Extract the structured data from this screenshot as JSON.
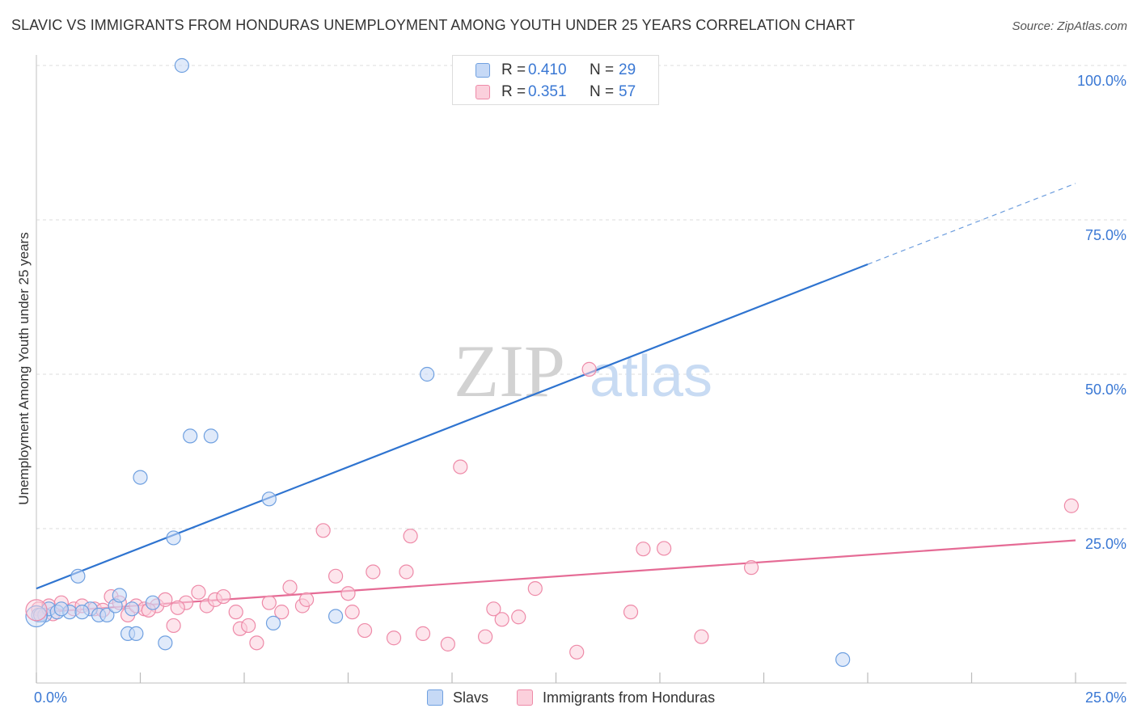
{
  "title": "SLAVIC VS IMMIGRANTS FROM HONDURAS UNEMPLOYMENT AMONG YOUTH UNDER 25 YEARS CORRELATION CHART",
  "source": "Source: ZipAtlas.com",
  "watermark": {
    "zip": "ZIP",
    "atlas": "atlas"
  },
  "legend_top": [
    {
      "r_label": "R =",
      "r_value": "0.410",
      "n_label": "N =",
      "n_value": "29",
      "color": "#6fa0e0",
      "fill": "#c6d9f6"
    },
    {
      "r_label": "R =",
      "r_value": "0.351",
      "n_label": "N =",
      "n_value": "57",
      "color": "#ee8aa8",
      "fill": "#fbd0dc"
    }
  ],
  "legend_bottom": [
    {
      "label": "Slavs",
      "color": "#6fa0e0",
      "fill": "#c6d9f6"
    },
    {
      "label": "Immigrants from Honduras",
      "color": "#ee8aa8",
      "fill": "#fbd0dc"
    }
  ],
  "chart_data": {
    "type": "scatter",
    "title": "SLAVIC VS IMMIGRANTS FROM HONDURAS UNEMPLOYMENT AMONG YOUTH UNDER 25 YEARS CORRELATION CHART",
    "xlabel": "",
    "ylabel": "Unemployment Among Youth under 25 years",
    "xlim": [
      0,
      25
    ],
    "ylim": [
      0,
      102
    ],
    "x_tick_labels": [
      {
        "value": 0,
        "label": "0.0%"
      },
      {
        "value": 25,
        "label": "25.0%"
      }
    ],
    "y_tick_labels": [
      {
        "value": 25,
        "label": "25.0%"
      },
      {
        "value": 50,
        "label": "50.0%"
      },
      {
        "value": 75,
        "label": "75.0%"
      },
      {
        "value": 100,
        "label": "100.0%"
      }
    ],
    "x_minor_ticks": [
      0,
      2.5,
      5,
      7.5,
      10,
      12.5,
      15,
      17.5,
      20,
      22.5,
      25
    ],
    "series": [
      {
        "name": "Slavs",
        "color": "#6fa0e0",
        "fill": "#c6d9f6",
        "trend_color": "#2f74d0",
        "trend": {
          "x0": 0,
          "y0": 15.3,
          "x1": 20,
          "y1": 67.8,
          "dash_to_x": 25,
          "dash_to_y": 80.9
        },
        "points": [
          [
            0.05,
            11
          ],
          [
            0.2,
            11
          ],
          [
            0.3,
            12
          ],
          [
            0.5,
            11.5
          ],
          [
            0.8,
            11.5
          ],
          [
            1.0,
            17.3
          ],
          [
            1.3,
            12
          ],
          [
            1.5,
            11
          ],
          [
            1.7,
            11
          ],
          [
            1.9,
            12.5
          ],
          [
            2.0,
            14.2
          ],
          [
            2.2,
            8
          ],
          [
            2.4,
            8
          ],
          [
            2.5,
            33.3
          ],
          [
            2.8,
            13
          ],
          [
            3.1,
            6.5
          ],
          [
            3.3,
            23.5
          ],
          [
            3.5,
            100
          ],
          [
            3.7,
            40
          ],
          [
            4.2,
            40
          ],
          [
            5.6,
            29.8
          ],
          [
            5.7,
            9.7
          ],
          [
            7.2,
            10.8
          ],
          [
            9.4,
            50
          ],
          [
            19.4,
            3.8
          ],
          [
            0.1,
            11
          ],
          [
            1.1,
            11.5
          ],
          [
            2.3,
            12
          ],
          [
            0.6,
            12
          ]
        ]
      },
      {
        "name": "Immigrants from Honduras",
        "color": "#ee8aa8",
        "fill": "#fbd0dc",
        "trend_color": "#e56b95",
        "trend": {
          "x0": 0,
          "y0": 11.4,
          "x1": 25,
          "y1": 23.1
        },
        "points": [
          [
            0.05,
            12
          ],
          [
            0.3,
            12.5
          ],
          [
            0.6,
            13
          ],
          [
            0.9,
            12
          ],
          [
            1.1,
            12.5
          ],
          [
            1.4,
            12
          ],
          [
            1.6,
            11.8
          ],
          [
            1.8,
            14
          ],
          [
            2.0,
            13
          ],
          [
            2.2,
            11
          ],
          [
            2.4,
            12.5
          ],
          [
            2.6,
            12
          ],
          [
            2.9,
            12.5
          ],
          [
            3.1,
            13.5
          ],
          [
            3.3,
            9.3
          ],
          [
            3.6,
            13
          ],
          [
            3.9,
            14.7
          ],
          [
            4.1,
            12.5
          ],
          [
            4.3,
            13.5
          ],
          [
            4.5,
            14
          ],
          [
            4.8,
            11.5
          ],
          [
            4.9,
            8.8
          ],
          [
            5.1,
            9.3
          ],
          [
            5.3,
            6.5
          ],
          [
            5.6,
            13
          ],
          [
            5.9,
            11.5
          ],
          [
            6.1,
            15.5
          ],
          [
            6.4,
            12.5
          ],
          [
            6.5,
            13.5
          ],
          [
            6.9,
            24.7
          ],
          [
            7.2,
            17.3
          ],
          [
            7.5,
            14.5
          ],
          [
            7.6,
            11.5
          ],
          [
            7.9,
            8.5
          ],
          [
            8.1,
            18
          ],
          [
            8.6,
            7.3
          ],
          [
            8.9,
            18
          ],
          [
            9.0,
            23.8
          ],
          [
            9.3,
            8
          ],
          [
            9.9,
            6.3
          ],
          [
            10.2,
            35
          ],
          [
            10.8,
            7.5
          ],
          [
            11.0,
            12
          ],
          [
            11.2,
            10.3
          ],
          [
            11.6,
            10.7
          ],
          [
            12.0,
            15.3
          ],
          [
            13.0,
            5
          ],
          [
            13.3,
            50.8
          ],
          [
            14.3,
            11.5
          ],
          [
            14.6,
            21.7
          ],
          [
            15.1,
            21.8
          ],
          [
            16.0,
            7.5
          ],
          [
            17.2,
            18.7
          ],
          [
            24.9,
            28.7
          ],
          [
            2.7,
            11.8
          ],
          [
            3.4,
            12.2
          ],
          [
            0.4,
            11.2
          ]
        ]
      }
    ],
    "large_points": [
      {
        "series": "Slavs",
        "x": 0.0,
        "y": 10.8
      },
      {
        "series": "Immigrants from Honduras",
        "x": 0.0,
        "y": 11.8
      }
    ]
  }
}
